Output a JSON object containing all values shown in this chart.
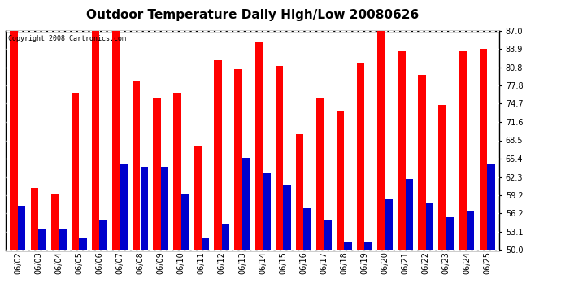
{
  "title": "Outdoor Temperature Daily High/Low 20080626",
  "copyright": "Copyright 2008 Cartronics.com",
  "dates": [
    "06/02",
    "06/03",
    "06/04",
    "06/05",
    "06/06",
    "06/07",
    "06/08",
    "06/09",
    "06/10",
    "06/11",
    "06/12",
    "06/13",
    "06/14",
    "06/15",
    "06/16",
    "06/17",
    "06/18",
    "06/19",
    "06/20",
    "06/21",
    "06/22",
    "06/23",
    "06/24",
    "06/25"
  ],
  "highs": [
    87.0,
    60.5,
    59.5,
    76.5,
    87.0,
    87.0,
    78.5,
    75.5,
    76.5,
    67.5,
    82.0,
    80.5,
    85.0,
    81.0,
    69.5,
    75.5,
    73.5,
    81.5,
    87.0,
    83.5,
    79.5,
    74.5,
    83.5,
    83.9
  ],
  "lows": [
    57.5,
    53.5,
    53.5,
    52.0,
    55.0,
    64.5,
    64.0,
    64.0,
    59.5,
    52.0,
    54.5,
    65.5,
    63.0,
    61.0,
    57.0,
    55.0,
    51.5,
    51.5,
    58.5,
    62.0,
    58.0,
    55.5,
    56.5,
    64.5
  ],
  "ymin": 50.0,
  "ymax": 87.0,
  "yticks": [
    50.0,
    53.1,
    56.2,
    59.2,
    62.3,
    65.4,
    68.5,
    71.6,
    74.7,
    77.8,
    80.8,
    83.9,
    87.0
  ],
  "high_color": "#ff0000",
  "low_color": "#0000cc",
  "bg_color": "#ffffff",
  "bar_width": 0.38,
  "title_fontsize": 11,
  "tick_fontsize": 7
}
